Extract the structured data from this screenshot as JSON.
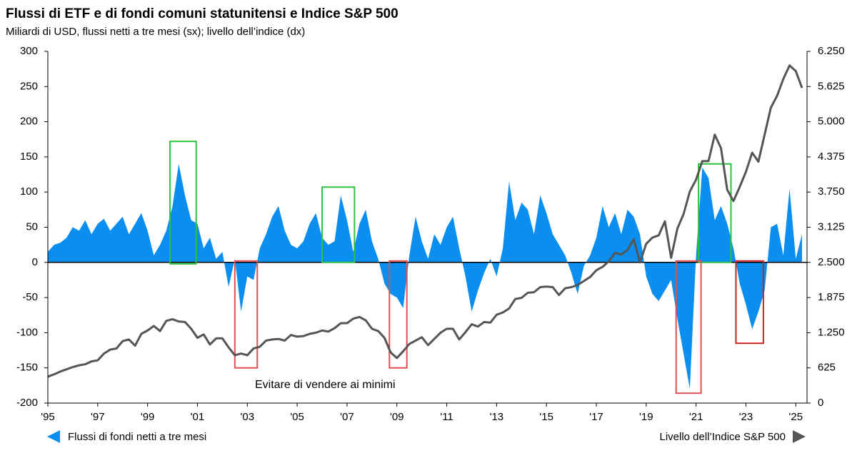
{
  "chart_data": {
    "type": "area-line",
    "title": "Flussi di ETF e di fondi comuni statunitensi e Indice S&P 500",
    "subtitle": "Miliardi di USD, flussi netti a tre mesi (sx); livello dell’indice (dx)",
    "annotation": "Evitare di vendere ai minimi",
    "x": [
      1995,
      1995.25,
      1995.5,
      1995.75,
      1996,
      1996.25,
      1996.5,
      1996.75,
      1997,
      1997.25,
      1997.5,
      1997.75,
      1998,
      1998.25,
      1998.5,
      1998.75,
      1999,
      1999.25,
      1999.5,
      1999.75,
      2000,
      2000.25,
      2000.5,
      2000.75,
      2001,
      2001.25,
      2001.5,
      2001.75,
      2002,
      2002.25,
      2002.5,
      2002.75,
      2003,
      2003.25,
      2003.5,
      2003.75,
      2004,
      2004.25,
      2004.5,
      2004.75,
      2005,
      2005.25,
      2005.5,
      2005.75,
      2006,
      2006.25,
      2006.5,
      2006.75,
      2007,
      2007.25,
      2007.5,
      2007.75,
      2008,
      2008.25,
      2008.5,
      2008.75,
      2009,
      2009.25,
      2009.5,
      2009.75,
      2010,
      2010.25,
      2010.5,
      2010.75,
      2011,
      2011.25,
      2011.5,
      2011.75,
      2012,
      2012.25,
      2012.5,
      2012.75,
      2013,
      2013.25,
      2013.5,
      2013.75,
      2014,
      2014.25,
      2014.5,
      2014.75,
      2015,
      2015.25,
      2015.5,
      2015.75,
      2016,
      2016.25,
      2016.5,
      2016.75,
      2017,
      2017.25,
      2017.5,
      2017.75,
      2018,
      2018.25,
      2018.5,
      2018.75,
      2019,
      2019.25,
      2019.5,
      2019.75,
      2020,
      2020.25,
      2020.5,
      2020.75,
      2021,
      2021.25,
      2021.5,
      2021.75,
      2022,
      2022.25,
      2022.5,
      2022.75,
      2023,
      2023.25,
      2023.5,
      2023.75,
      2024,
      2024.25,
      2024.5,
      2024.75,
      2025,
      2025.25
    ],
    "series": [
      {
        "name": "Flussi di fondi netti a tre mesi",
        "color": "#0a8ff0",
        "axis": "y",
        "values": [
          15,
          25,
          28,
          35,
          50,
          45,
          60,
          40,
          55,
          62,
          45,
          55,
          65,
          40,
          55,
          70,
          45,
          10,
          25,
          45,
          80,
          140,
          95,
          60,
          55,
          20,
          35,
          5,
          15,
          -35,
          5,
          -70,
          -20,
          -25,
          20,
          40,
          65,
          80,
          45,
          25,
          20,
          30,
          55,
          70,
          35,
          25,
          30,
          95,
          60,
          15,
          55,
          75,
          30,
          5,
          -30,
          -45,
          -50,
          -65,
          10,
          65,
          30,
          5,
          40,
          25,
          50,
          65,
          20,
          -20,
          -70,
          -40,
          -15,
          5,
          -20,
          20,
          115,
          60,
          85,
          75,
          40,
          95,
          70,
          40,
          25,
          10,
          -15,
          -45,
          -5,
          10,
          35,
          80,
          50,
          70,
          40,
          75,
          65,
          40,
          -20,
          -45,
          -55,
          -40,
          -25,
          -80,
          -130,
          -180,
          10,
          135,
          120,
          60,
          80,
          55,
          20,
          -30,
          -60,
          -95,
          -70,
          -40,
          50,
          55,
          10,
          105,
          5,
          40
        ]
      },
      {
        "name": "Livello dell’Indice S&P 500",
        "color": "#555555",
        "axis": "y2",
        "values": [
          470,
          510,
          560,
          600,
          640,
          670,
          690,
          740,
          760,
          880,
          950,
          970,
          1100,
          1130,
          1020,
          1230,
          1290,
          1370,
          1280,
          1460,
          1490,
          1450,
          1440,
          1320,
          1160,
          1220,
          1040,
          1150,
          1150,
          990,
          850,
          880,
          850,
          970,
          1000,
          1110,
          1130,
          1140,
          1110,
          1210,
          1180,
          1190,
          1230,
          1250,
          1290,
          1270,
          1330,
          1420,
          1420,
          1500,
          1530,
          1470,
          1320,
          1280,
          1160,
          900,
          800,
          920,
          1050,
          1110,
          1170,
          1030,
          1140,
          1250,
          1320,
          1320,
          1130,
          1260,
          1400,
          1360,
          1440,
          1430,
          1570,
          1610,
          1680,
          1850,
          1870,
          1960,
          1970,
          2060,
          2070,
          2060,
          1920,
          2040,
          2060,
          2100,
          2170,
          2240,
          2360,
          2420,
          2520,
          2670,
          2640,
          2720,
          2910,
          2500,
          2830,
          2940,
          2980,
          3230,
          2580,
          3100,
          3360,
          3760,
          3970,
          4300,
          4300,
          4770,
          4530,
          3790,
          3590,
          3840,
          4110,
          4450,
          4290,
          4770,
          5250,
          5460,
          5760,
          6000,
          5900,
          5600
        ]
      }
    ],
    "xlim": [
      1995,
      2025.45
    ],
    "xticks": [
      {
        "value": 1995,
        "label": "'95"
      },
      {
        "value": 1997,
        "label": "'97"
      },
      {
        "value": 1999,
        "label": "'99"
      },
      {
        "value": 2001,
        "label": "'01"
      },
      {
        "value": 2003,
        "label": "'03"
      },
      {
        "value": 2005,
        "label": "'05"
      },
      {
        "value": 2007,
        "label": "'07"
      },
      {
        "value": 2009,
        "label": "'09"
      },
      {
        "value": 2011,
        "label": "'11"
      },
      {
        "value": 2013,
        "label": "'13"
      },
      {
        "value": 2015,
        "label": "'15"
      },
      {
        "value": 2017,
        "label": "'17"
      },
      {
        "value": 2019,
        "label": "'19"
      },
      {
        "value": 2021,
        "label": "'21"
      },
      {
        "value": 2023,
        "label": "'23"
      },
      {
        "value": 2025,
        "label": "'25"
      }
    ],
    "ylim": [
      -200,
      300
    ],
    "yticks": [
      -200,
      -150,
      -100,
      -50,
      0,
      50,
      100,
      150,
      200,
      250,
      300
    ],
    "y2lim": [
      0,
      6250
    ],
    "y2ticks": [
      0,
      625,
      {
        "value": 1250,
        "label": "1.250"
      },
      {
        "value": 1875,
        "label": "1.875"
      },
      {
        "value": 2500,
        "label": "2.500"
      },
      {
        "value": 3125,
        "label": "3.125"
      },
      {
        "value": 3750,
        "label": "3.750"
      },
      {
        "value": 4375,
        "label": "4.375"
      },
      {
        "value": 5000,
        "label": "5.000"
      },
      {
        "value": 5625,
        "label": "5.625"
      },
      {
        "value": 6250,
        "label": "6.250"
      }
    ],
    "highlights": [
      {
        "x": [
          1999.9,
          2000.95
        ],
        "y": [
          -2,
          172
        ],
        "color": "#2ec040"
      },
      {
        "x": [
          2006.0,
          2007.3
        ],
        "y": [
          0,
          107
        ],
        "color": "#2ec040"
      },
      {
        "x": [
          2021.1,
          2022.4
        ],
        "y": [
          0,
          140
        ],
        "color": "#2ec040"
      },
      {
        "x": [
          2002.5,
          2003.4
        ],
        "y": [
          2,
          -150
        ],
        "color": "#e05050"
      },
      {
        "x": [
          2008.7,
          2009.4
        ],
        "y": [
          2,
          -150
        ],
        "color": "#e05050"
      },
      {
        "x": [
          2020.2,
          2021.2
        ],
        "y": [
          2,
          -186
        ],
        "color": "#e05050"
      },
      {
        "x": [
          2022.6,
          2023.7
        ],
        "y": [
          2,
          -115
        ],
        "color": "#cc2222"
      }
    ]
  }
}
